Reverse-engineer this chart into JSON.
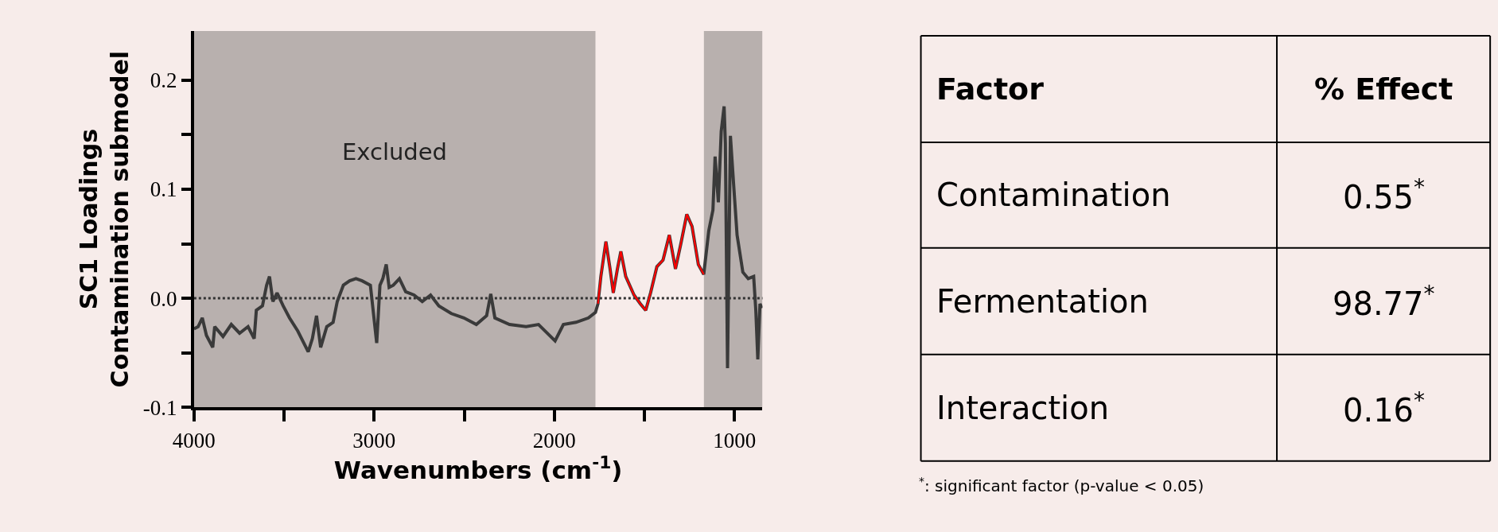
{
  "chart_data": [
    {
      "type": "line",
      "xlabel": "Wavenumbers (cm$^{-1}$)",
      "ylabel": "SC1 Loadings\nContamination submodel",
      "xlim": [
        4000,
        845
      ],
      "ylim": [
        -0.1,
        0.245
      ],
      "xticks": [
        4000,
        {
          "value": 3500,
          "label": null
        },
        3000,
        {
          "value": 2500,
          "label": null
        },
        2000,
        {
          "value": 1500,
          "label": null
        },
        1000
      ],
      "yticks": [
        {
          "value": -0.1,
          "label": "-0.1"
        },
        {
          "value": -0.05,
          "label": null
        },
        {
          "value": 0,
          "label": "0.0"
        },
        {
          "value": 0.05,
          "label": null
        },
        {
          "value": 0.1,
          "label": "0.1"
        },
        {
          "value": 0.15,
          "label": null
        },
        {
          "value": 0.2,
          "label": "0.2"
        }
      ],
      "grid": false,
      "marker": "none",
      "series": [
        {
          "color": "#3a3a3a",
          "line_style": "solid",
          "x": [
            4000,
            3977,
            3954,
            3931,
            3896,
            3885,
            3839,
            3793,
            3747,
            3700,
            3666,
            3654,
            3620,
            3597,
            3581,
            3562,
            3539,
            3505,
            3470,
            3424,
            3366,
            3343,
            3320,
            3297,
            3263,
            3228,
            3205,
            3171,
            3136,
            3101,
            3067,
            3021,
            2986,
            2968,
            2952,
            2933,
            2917,
            2894,
            2860,
            2825,
            2779,
            2733,
            2687,
            2641,
            2572,
            2502,
            2433,
            2376,
            2353,
            2330,
            2249,
            2157,
            2088,
            1996,
            1950,
            1880,
            1811,
            1772,
            1758,
            1742,
            1714,
            1691,
            1673,
            1650,
            1631,
            1604,
            1558,
            1523,
            1493,
            1466,
            1431,
            1397,
            1362,
            1328,
            1298,
            1265,
            1236,
            1201,
            1171,
            1143,
            1120,
            1108,
            1090,
            1074,
            1058,
            1051,
            1039,
            1023,
            1005,
            986,
            954,
            924,
            894,
            882,
            871,
            859,
            848
          ],
          "values": [
            -0.028,
            -0.026,
            -0.018,
            -0.034,
            -0.045,
            -0.026,
            -0.035,
            -0.024,
            -0.032,
            -0.026,
            -0.037,
            -0.011,
            -0.007,
            0.012,
            0.02,
            -0.003,
            0.005,
            -0.007,
            -0.018,
            -0.03,
            -0.049,
            -0.037,
            -0.016,
            -0.045,
            -0.026,
            -0.022,
            -0.003,
            0.012,
            0.016,
            0.018,
            0.016,
            0.012,
            -0.041,
            0.012,
            0.018,
            0.031,
            0.01,
            0.012,
            0.018,
            0.006,
            0.003,
            -0.003,
            0.003,
            -0.007,
            -0.014,
            -0.018,
            -0.024,
            -0.016,
            0.004,
            -0.018,
            -0.024,
            -0.026,
            -0.024,
            -0.039,
            -0.024,
            -0.022,
            -0.018,
            -0.013,
            -0.005,
            0.02,
            0.052,
            0.027,
            0.005,
            0.027,
            0.043,
            0.02,
            0.003,
            -0.005,
            -0.011,
            0.005,
            0.029,
            0.035,
            0.058,
            0.027,
            0.05,
            0.077,
            0.066,
            0.031,
            0.022,
            0.062,
            0.081,
            0.13,
            0.088,
            0.153,
            0.176,
            0.142,
            -0.064,
            0.149,
            0.104,
            0.058,
            0.024,
            0.018,
            0.02,
            -0.011,
            -0.056,
            -0.005,
            -0.009
          ]
        },
        {
          "color": "#ff0000",
          "line_style": "solid",
          "x": [
            1758,
            1742,
            1714,
            1691,
            1673,
            1650,
            1631,
            1604,
            1558,
            1523,
            1493,
            1466,
            1431,
            1397,
            1362,
            1328,
            1298,
            1265,
            1236,
            1201,
            1171
          ],
          "values": [
            -0.005,
            0.02,
            0.052,
            0.027,
            0.005,
            0.027,
            0.043,
            0.02,
            0.003,
            -0.005,
            -0.011,
            0.005,
            0.029,
            0.035,
            0.058,
            0.027,
            0.05,
            0.077,
            0.066,
            0.031,
            0.022
          ]
        }
      ],
      "ref_lines": [
        {
          "axis": "y",
          "value": 0,
          "line_style": "dotted",
          "color": "#333333"
        }
      ],
      "bands": [
        {
          "axis": "x",
          "from": 4000,
          "to": 1772,
          "label": "Excluded",
          "color": "#b8b0ae"
        },
        {
          "axis": "x",
          "from": 1170,
          "to": 845,
          "color": "#b8b0ae"
        }
      ]
    },
    {
      "type": "other",
      "annotations": [
        "Factor",
        "% Effect",
        "Contamination",
        "0.55$^{*}$",
        "Fermentation",
        "98.77$^{*}$",
        "Interaction",
        "0.16$^{*}$",
        "$^{*}$: significant factor (p-value < 0.05)"
      ]
    }
  ]
}
